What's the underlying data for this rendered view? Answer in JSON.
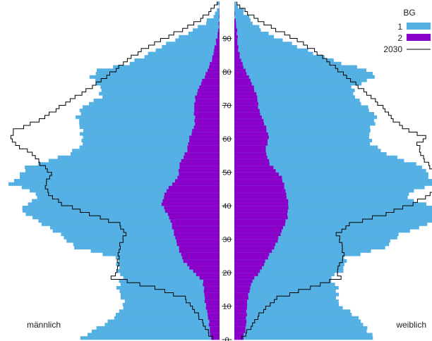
{
  "chart_data": {
    "type": "population-pyramid",
    "x_axis": {
      "ticks": [
        0,
        10,
        20,
        30,
        40,
        50,
        60,
        70,
        80,
        90
      ],
      "range": [
        0,
        100
      ]
    },
    "side_labels": {
      "left": "männlich",
      "right": "weiblich"
    },
    "legend": {
      "title": "BG",
      "placement": "top-right",
      "entries": [
        {
          "key": "g1",
          "label": "1",
          "color": "#55b0e4"
        },
        {
          "key": "g2",
          "label": "2",
          "color": "#8b00c9"
        },
        {
          "key": "p2030",
          "label": "2030",
          "color": "#000000"
        }
      ]
    },
    "value_unit": "relative share (0–1, max side width = 1)",
    "series_profiles": {
      "total": {
        "description": "Gruppe 1 + Gruppe 2 (outer extent of filled bars)",
        "male_knots": [
          [
            0,
            0.64
          ],
          [
            5,
            0.52
          ],
          [
            10,
            0.46
          ],
          [
            15,
            0.47
          ],
          [
            18,
            0.45
          ],
          [
            20,
            0.48
          ],
          [
            24,
            0.5
          ],
          [
            27,
            0.68
          ],
          [
            31,
            0.74
          ],
          [
            35,
            0.86
          ],
          [
            38,
            0.95
          ],
          [
            40,
            0.92
          ],
          [
            42,
            0.86
          ],
          [
            44,
            0.88
          ],
          [
            46,
            0.98
          ],
          [
            48,
            0.94
          ],
          [
            51,
            0.92
          ],
          [
            55,
            0.72
          ],
          [
            58,
            0.64
          ],
          [
            62,
            0.64
          ],
          [
            66,
            0.68
          ],
          [
            69,
            0.66
          ],
          [
            72,
            0.56
          ],
          [
            75,
            0.55
          ],
          [
            78,
            0.6
          ],
          [
            80,
            0.58
          ],
          [
            82,
            0.44
          ],
          [
            85,
            0.34
          ],
          [
            88,
            0.24
          ],
          [
            91,
            0.14
          ],
          [
            94,
            0.07
          ],
          [
            97,
            0.03
          ],
          [
            100,
            0.01
          ]
        ],
        "female_knots": [
          [
            0,
            0.67
          ],
          [
            5,
            0.59
          ],
          [
            10,
            0.49
          ],
          [
            15,
            0.5
          ],
          [
            18,
            0.45
          ],
          [
            20,
            0.5
          ],
          [
            24,
            0.52
          ],
          [
            27,
            0.72
          ],
          [
            31,
            0.79
          ],
          [
            35,
            0.95
          ],
          [
            38,
            0.99
          ],
          [
            40,
            0.9
          ],
          [
            42,
            0.82
          ],
          [
            44,
            0.86
          ],
          [
            46,
            0.95
          ],
          [
            48,
            0.92
          ],
          [
            51,
            0.88
          ],
          [
            55,
            0.72
          ],
          [
            58,
            0.66
          ],
          [
            62,
            0.64
          ],
          [
            66,
            0.66
          ],
          [
            69,
            0.62
          ],
          [
            72,
            0.58
          ],
          [
            75,
            0.57
          ],
          [
            78,
            0.66
          ],
          [
            80,
            0.62
          ],
          [
            82,
            0.5
          ],
          [
            85,
            0.38
          ],
          [
            88,
            0.28
          ],
          [
            91,
            0.16
          ],
          [
            94,
            0.08
          ],
          [
            97,
            0.04
          ],
          [
            100,
            0.01
          ]
        ]
      },
      "group2": {
        "description": "Gruppe 2",
        "male_knots": [
          [
            0,
            0.04
          ],
          [
            3,
            0.05
          ],
          [
            8,
            0.06
          ],
          [
            14,
            0.07
          ],
          [
            17,
            0.08
          ],
          [
            20,
            0.13
          ],
          [
            23,
            0.17
          ],
          [
            27,
            0.19
          ],
          [
            32,
            0.22
          ],
          [
            36,
            0.24
          ],
          [
            40,
            0.27
          ],
          [
            44,
            0.25
          ],
          [
            48,
            0.2
          ],
          [
            52,
            0.19
          ],
          [
            56,
            0.15
          ],
          [
            60,
            0.14
          ],
          [
            64,
            0.12
          ],
          [
            68,
            0.12
          ],
          [
            72,
            0.11
          ],
          [
            76,
            0.09
          ],
          [
            80,
            0.06
          ],
          [
            84,
            0.03
          ],
          [
            88,
            0.015
          ],
          [
            92,
            0.008
          ],
          [
            96,
            0.003
          ],
          [
            100,
            0
          ]
        ],
        "female_knots": [
          [
            0,
            0.04
          ],
          [
            3,
            0.05
          ],
          [
            8,
            0.06
          ],
          [
            14,
            0.07
          ],
          [
            17,
            0.08
          ],
          [
            20,
            0.12
          ],
          [
            23,
            0.15
          ],
          [
            27,
            0.19
          ],
          [
            32,
            0.22
          ],
          [
            36,
            0.25
          ],
          [
            40,
            0.26
          ],
          [
            44,
            0.24
          ],
          [
            48,
            0.22
          ],
          [
            52,
            0.17
          ],
          [
            56,
            0.15
          ],
          [
            60,
            0.16
          ],
          [
            64,
            0.14
          ],
          [
            68,
            0.12
          ],
          [
            72,
            0.11
          ],
          [
            76,
            0.08
          ],
          [
            80,
            0.05
          ],
          [
            84,
            0.03
          ],
          [
            88,
            0.015
          ],
          [
            92,
            0.008
          ],
          [
            96,
            0.003
          ],
          [
            100,
            0
          ]
        ]
      },
      "p2030": {
        "description": "2030 (line)",
        "male_knots": [
          [
            0,
            0.03
          ],
          [
            4,
            0.08
          ],
          [
            8,
            0.12
          ],
          [
            12,
            0.16
          ],
          [
            15,
            0.3
          ],
          [
            18,
            0.51
          ],
          [
            20,
            0.49
          ],
          [
            24,
            0.48
          ],
          [
            28,
            0.46
          ],
          [
            31,
            0.44
          ],
          [
            34,
            0.48
          ],
          [
            37,
            0.62
          ],
          [
            40,
            0.74
          ],
          [
            43,
            0.8
          ],
          [
            46,
            0.82
          ],
          [
            49,
            0.8
          ],
          [
            52,
            0.85
          ],
          [
            55,
            0.88
          ],
          [
            58,
            0.96
          ],
          [
            60,
            0.98
          ],
          [
            62,
            0.97
          ],
          [
            65,
            0.86
          ],
          [
            68,
            0.78
          ],
          [
            71,
            0.7
          ],
          [
            74,
            0.62
          ],
          [
            77,
            0.56
          ],
          [
            80,
            0.5
          ],
          [
            83,
            0.44
          ],
          [
            86,
            0.36
          ],
          [
            89,
            0.27
          ],
          [
            92,
            0.18
          ],
          [
            95,
            0.1
          ],
          [
            98,
            0.04
          ],
          [
            100,
            0.01
          ]
        ],
        "female_knots": [
          [
            0,
            0.03
          ],
          [
            4,
            0.09
          ],
          [
            8,
            0.14
          ],
          [
            12,
            0.2
          ],
          [
            15,
            0.35
          ],
          [
            18,
            0.5
          ],
          [
            20,
            0.49
          ],
          [
            24,
            0.52
          ],
          [
            28,
            0.5
          ],
          [
            31,
            0.48
          ],
          [
            34,
            0.55
          ],
          [
            37,
            0.72
          ],
          [
            40,
            0.84
          ],
          [
            43,
            0.92
          ],
          [
            46,
            0.99
          ],
          [
            49,
            0.96
          ],
          [
            52,
            0.92
          ],
          [
            55,
            0.88
          ],
          [
            58,
            0.86
          ],
          [
            60,
            0.9
          ],
          [
            62,
            0.82
          ],
          [
            65,
            0.76
          ],
          [
            68,
            0.72
          ],
          [
            71,
            0.66
          ],
          [
            74,
            0.6
          ],
          [
            77,
            0.55
          ],
          [
            80,
            0.5
          ],
          [
            83,
            0.44
          ],
          [
            86,
            0.37
          ],
          [
            89,
            0.29
          ],
          [
            92,
            0.2
          ],
          [
            95,
            0.12
          ],
          [
            98,
            0.05
          ],
          [
            100,
            0.01
          ]
        ]
      }
    }
  }
}
